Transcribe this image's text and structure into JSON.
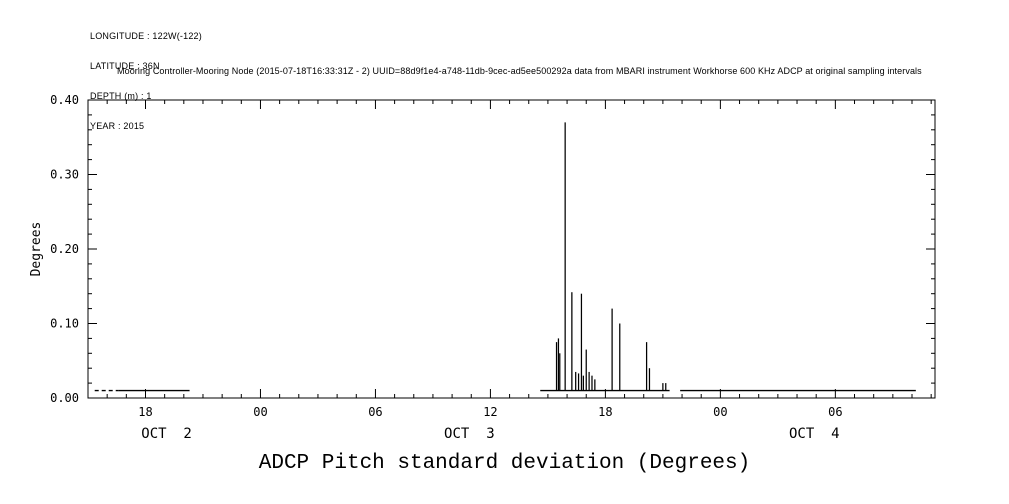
{
  "header": {
    "longitude": "LONGITUDE : 122W(-122)",
    "latitude": "LATITUDE : 36N",
    "depth": "DEPTH (m) : 1",
    "year": "YEAR : 2015"
  },
  "subtitle": "Mooring Controller-Mooring Node (2015-07-18T16:33:31Z - 2) UUID=88d9f1e4-a748-11db-9cec-ad5ee500292a data from MBARI instrument Workhorse 600 KHz ADCP at original sampling intervals",
  "title": "ADCP Pitch standard deviation (Degrees)",
  "chart_data": {
    "type": "line",
    "title": "ADCP Pitch standard deviation (Degrees)",
    "ylabel": "Degrees",
    "xlabel": "",
    "ylim": [
      0.0,
      0.4
    ],
    "yticks": [
      0.0,
      0.1,
      0.2,
      0.3,
      0.4
    ],
    "ytick_labels": [
      "0.00",
      "0.10",
      "0.20",
      "0.30",
      "0.40"
    ],
    "ytick_minor_step": 0.02,
    "xlim_hours": [
      0,
      44.2
    ],
    "xticks": [
      {
        "hour": 3,
        "label": "18"
      },
      {
        "hour": 9,
        "label": "00"
      },
      {
        "hour": 15,
        "label": "06"
      },
      {
        "hour": 21,
        "label": "12"
      },
      {
        "hour": 27,
        "label": "18"
      },
      {
        "hour": 33,
        "label": "00"
      },
      {
        "hour": 39,
        "label": "06"
      }
    ],
    "date_labels": [
      {
        "hour": 4.1,
        "label": "OCT  2"
      },
      {
        "hour": 19.9,
        "label": "OCT  3"
      },
      {
        "hour": 37.9,
        "label": "OCT  4"
      }
    ],
    "grid": false,
    "legend": null,
    "baseline_value": 0.01,
    "segments": [
      {
        "start": 0.35,
        "end": 1.6,
        "value": 0.01,
        "style": "dotted"
      },
      {
        "start": 1.6,
        "end": 5.3,
        "value": 0.01,
        "style": "solid"
      },
      {
        "start": 23.6,
        "end": 30.35,
        "value": 0.01,
        "style": "solid"
      },
      {
        "start": 30.9,
        "end": 43.2,
        "value": 0.01,
        "style": "solid"
      }
    ],
    "spikes": [
      [
        24.45,
        0.075
      ],
      [
        24.55,
        0.08
      ],
      [
        24.62,
        0.06
      ],
      [
        24.9,
        0.37
      ],
      [
        25.25,
        0.142
      ],
      [
        25.45,
        0.035
      ],
      [
        25.6,
        0.033
      ],
      [
        25.75,
        0.14
      ],
      [
        25.85,
        0.03
      ],
      [
        26.0,
        0.065
      ],
      [
        26.15,
        0.035
      ],
      [
        26.3,
        0.03
      ],
      [
        26.45,
        0.025
      ],
      [
        27.35,
        0.12
      ],
      [
        27.75,
        0.1
      ],
      [
        29.15,
        0.075
      ],
      [
        29.3,
        0.04
      ],
      [
        30.0,
        0.02
      ],
      [
        30.15,
        0.02
      ]
    ]
  }
}
